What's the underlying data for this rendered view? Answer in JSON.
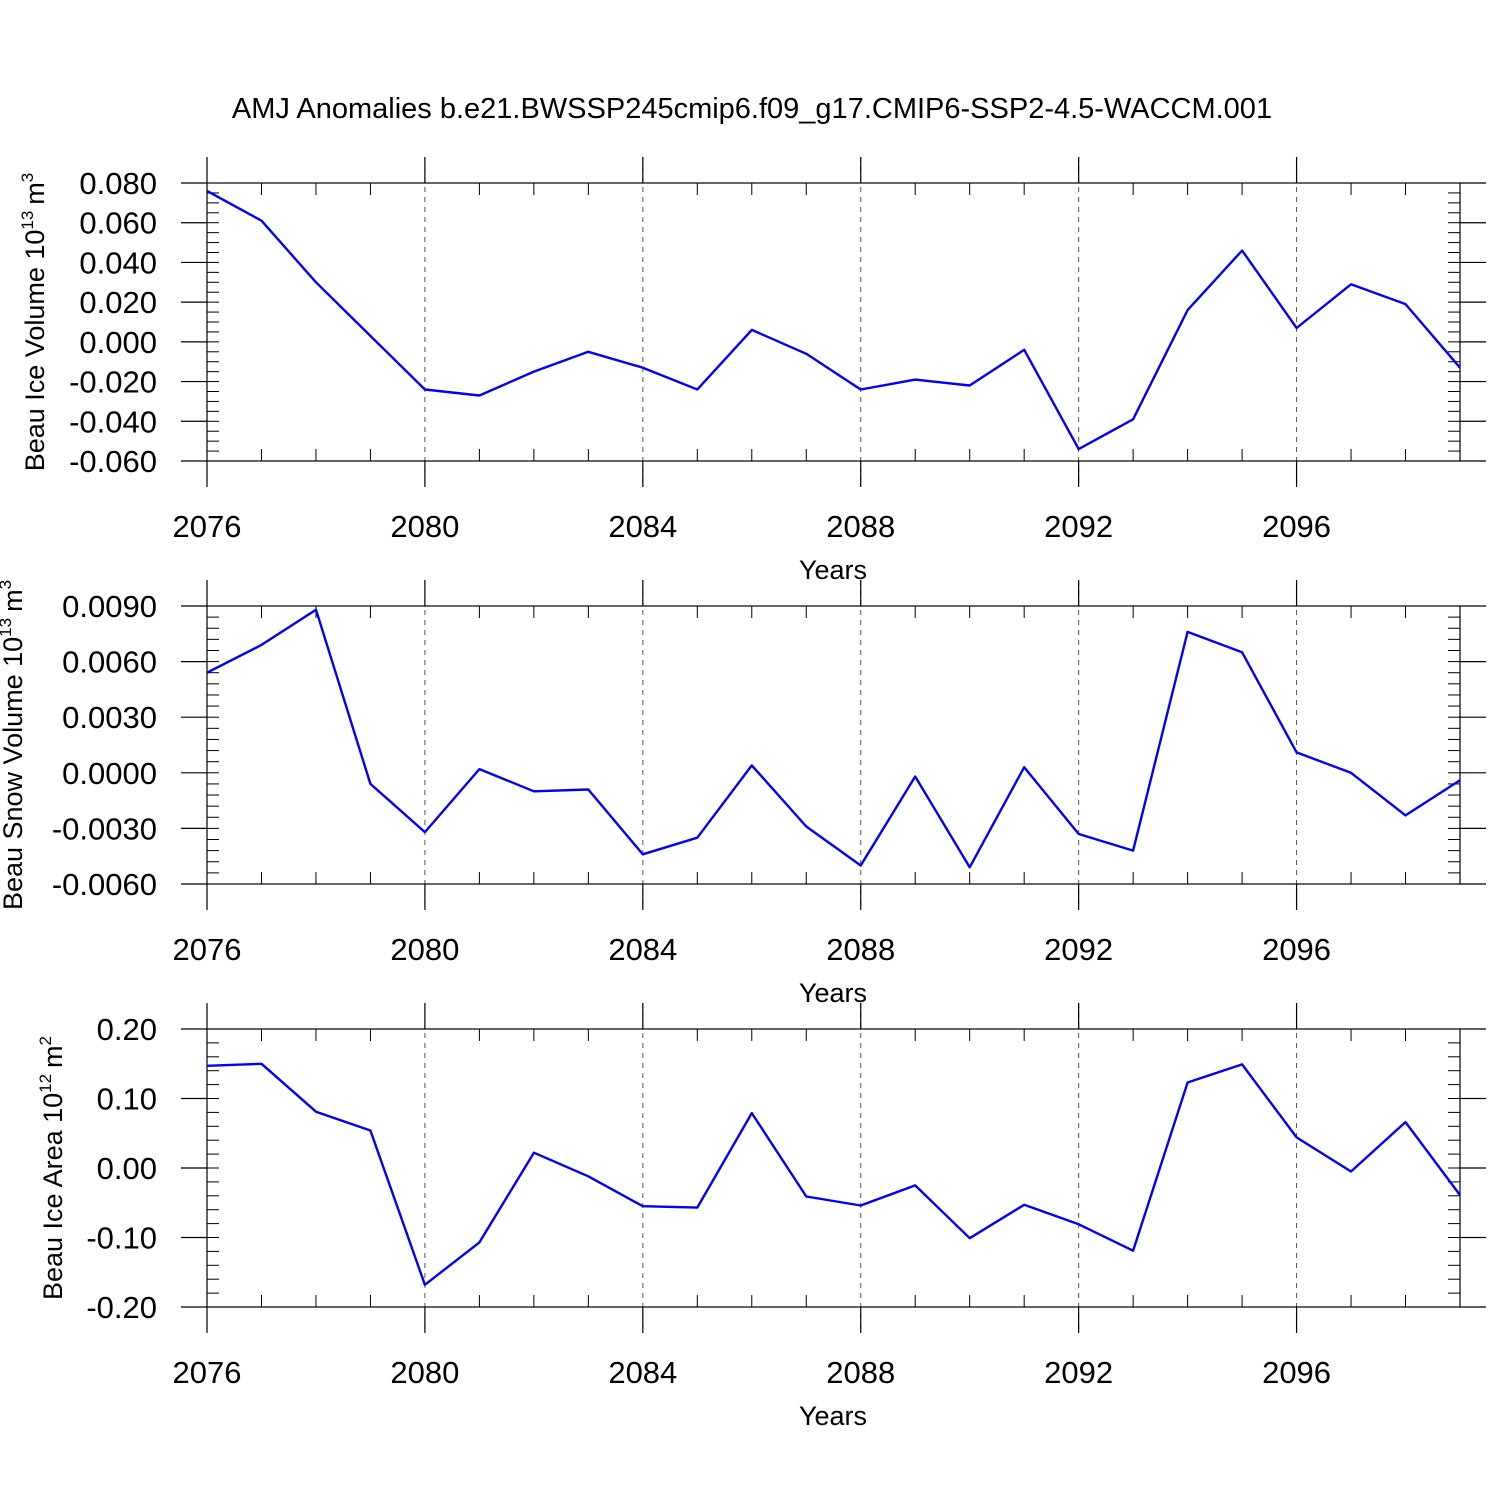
{
  "title": "AMJ Anomalies b.e21.BWSSP245cmip6.f09_g17.CMIP6-SSP2-4.5-WACCM.001",
  "line_color": "#0000ff",
  "chart_data": [
    {
      "type": "line",
      "ylabel_main": "Beau Ice Volume 10",
      "ylabel_exp": "13",
      "ylabel_unit": "m",
      "ylabel_unit_exp": "3",
      "xlabel": "Years",
      "xlim": [
        2076,
        2099
      ],
      "ylim": [
        -0.06,
        0.08
      ],
      "x_ticks": [
        2076,
        2080,
        2084,
        2088,
        2092,
        2096
      ],
      "x_tick_labels": [
        "2076",
        "2080",
        "2084",
        "2088",
        "2092",
        "2096"
      ],
      "y_ticks": [
        0.08,
        0.06,
        0.04,
        0.02,
        0.0,
        -0.02,
        -0.04,
        -0.06
      ],
      "y_tick_labels": [
        "0.080",
        "0.060",
        "0.040",
        "0.020",
        "0.000",
        "-0.020",
        "-0.040",
        "-0.060"
      ],
      "y_minor_step": 0.005,
      "x": [
        2076,
        2077,
        2078,
        2079,
        2080,
        2081,
        2082,
        2083,
        2084,
        2085,
        2086,
        2087,
        2088,
        2089,
        2090,
        2091,
        2092,
        2093,
        2094,
        2095,
        2096,
        2097,
        2098,
        2099
      ],
      "values": [
        0.076,
        0.061,
        0.03,
        0.003,
        -0.024,
        -0.027,
        -0.015,
        -0.005,
        -0.013,
        -0.024,
        0.006,
        -0.006,
        -0.024,
        -0.019,
        -0.022,
        -0.004,
        -0.054,
        -0.039,
        0.016,
        0.046,
        0.007,
        0.029,
        0.019,
        -0.013
      ]
    },
    {
      "type": "line",
      "ylabel_main": "Beau Snow Volume 10",
      "ylabel_exp": "13",
      "ylabel_unit": "m",
      "ylabel_unit_exp": "3",
      "xlabel": "Years",
      "xlim": [
        2076,
        2099
      ],
      "ylim": [
        -0.006,
        0.009
      ],
      "x_ticks": [
        2076,
        2080,
        2084,
        2088,
        2092,
        2096
      ],
      "x_tick_labels": [
        "2076",
        "2080",
        "2084",
        "2088",
        "2092",
        "2096"
      ],
      "y_ticks": [
        0.009,
        0.006,
        0.003,
        0.0,
        -0.003,
        -0.006
      ],
      "y_tick_labels": [
        "0.0090",
        "0.0060",
        "0.0030",
        "0.0000",
        "-0.0030",
        "-0.0060"
      ],
      "y_minor_step": 0.0006,
      "x": [
        2076,
        2077,
        2078,
        2079,
        2080,
        2081,
        2082,
        2083,
        2084,
        2085,
        2086,
        2087,
        2088,
        2089,
        2090,
        2091,
        2092,
        2093,
        2094,
        2095,
        2096,
        2097,
        2098,
        2099
      ],
      "values": [
        0.0054,
        0.0069,
        0.0088,
        -0.0006,
        -0.0032,
        0.0002,
        -0.001,
        -0.0009,
        -0.0044,
        -0.0035,
        0.0004,
        -0.0029,
        -0.005,
        -0.0002,
        -0.0051,
        0.0003,
        -0.0033,
        -0.0042,
        0.0076,
        0.0065,
        0.0011,
        0.0,
        -0.0023,
        -0.0004
      ]
    },
    {
      "type": "line",
      "ylabel_main": "Beau Ice Area 10",
      "ylabel_exp": "12",
      "ylabel_unit": "m",
      "ylabel_unit_exp": "2",
      "xlabel": "Years",
      "xlim": [
        2076,
        2099
      ],
      "ylim": [
        -0.2,
        0.2
      ],
      "x_ticks": [
        2076,
        2080,
        2084,
        2088,
        2092,
        2096
      ],
      "x_tick_labels": [
        "2076",
        "2080",
        "2084",
        "2088",
        "2092",
        "2096"
      ],
      "y_ticks": [
        0.2,
        0.1,
        0.0,
        -0.1,
        -0.2
      ],
      "y_tick_labels": [
        "0.20",
        "0.10",
        "0.00",
        "-0.10",
        "-0.20"
      ],
      "y_minor_step": 0.02,
      "x": [
        2076,
        2077,
        2078,
        2079,
        2080,
        2081,
        2082,
        2083,
        2084,
        2085,
        2086,
        2087,
        2088,
        2089,
        2090,
        2091,
        2092,
        2093,
        2094,
        2095,
        2096,
        2097,
        2098,
        2099
      ],
      "values": [
        0.147,
        0.15,
        0.081,
        0.054,
        -0.168,
        -0.107,
        0.022,
        -0.012,
        -0.055,
        -0.057,
        0.079,
        -0.041,
        -0.054,
        -0.025,
        -0.101,
        -0.053,
        -0.081,
        -0.119,
        0.123,
        0.149,
        0.044,
        -0.005,
        0.066,
        -0.039
      ]
    }
  ]
}
